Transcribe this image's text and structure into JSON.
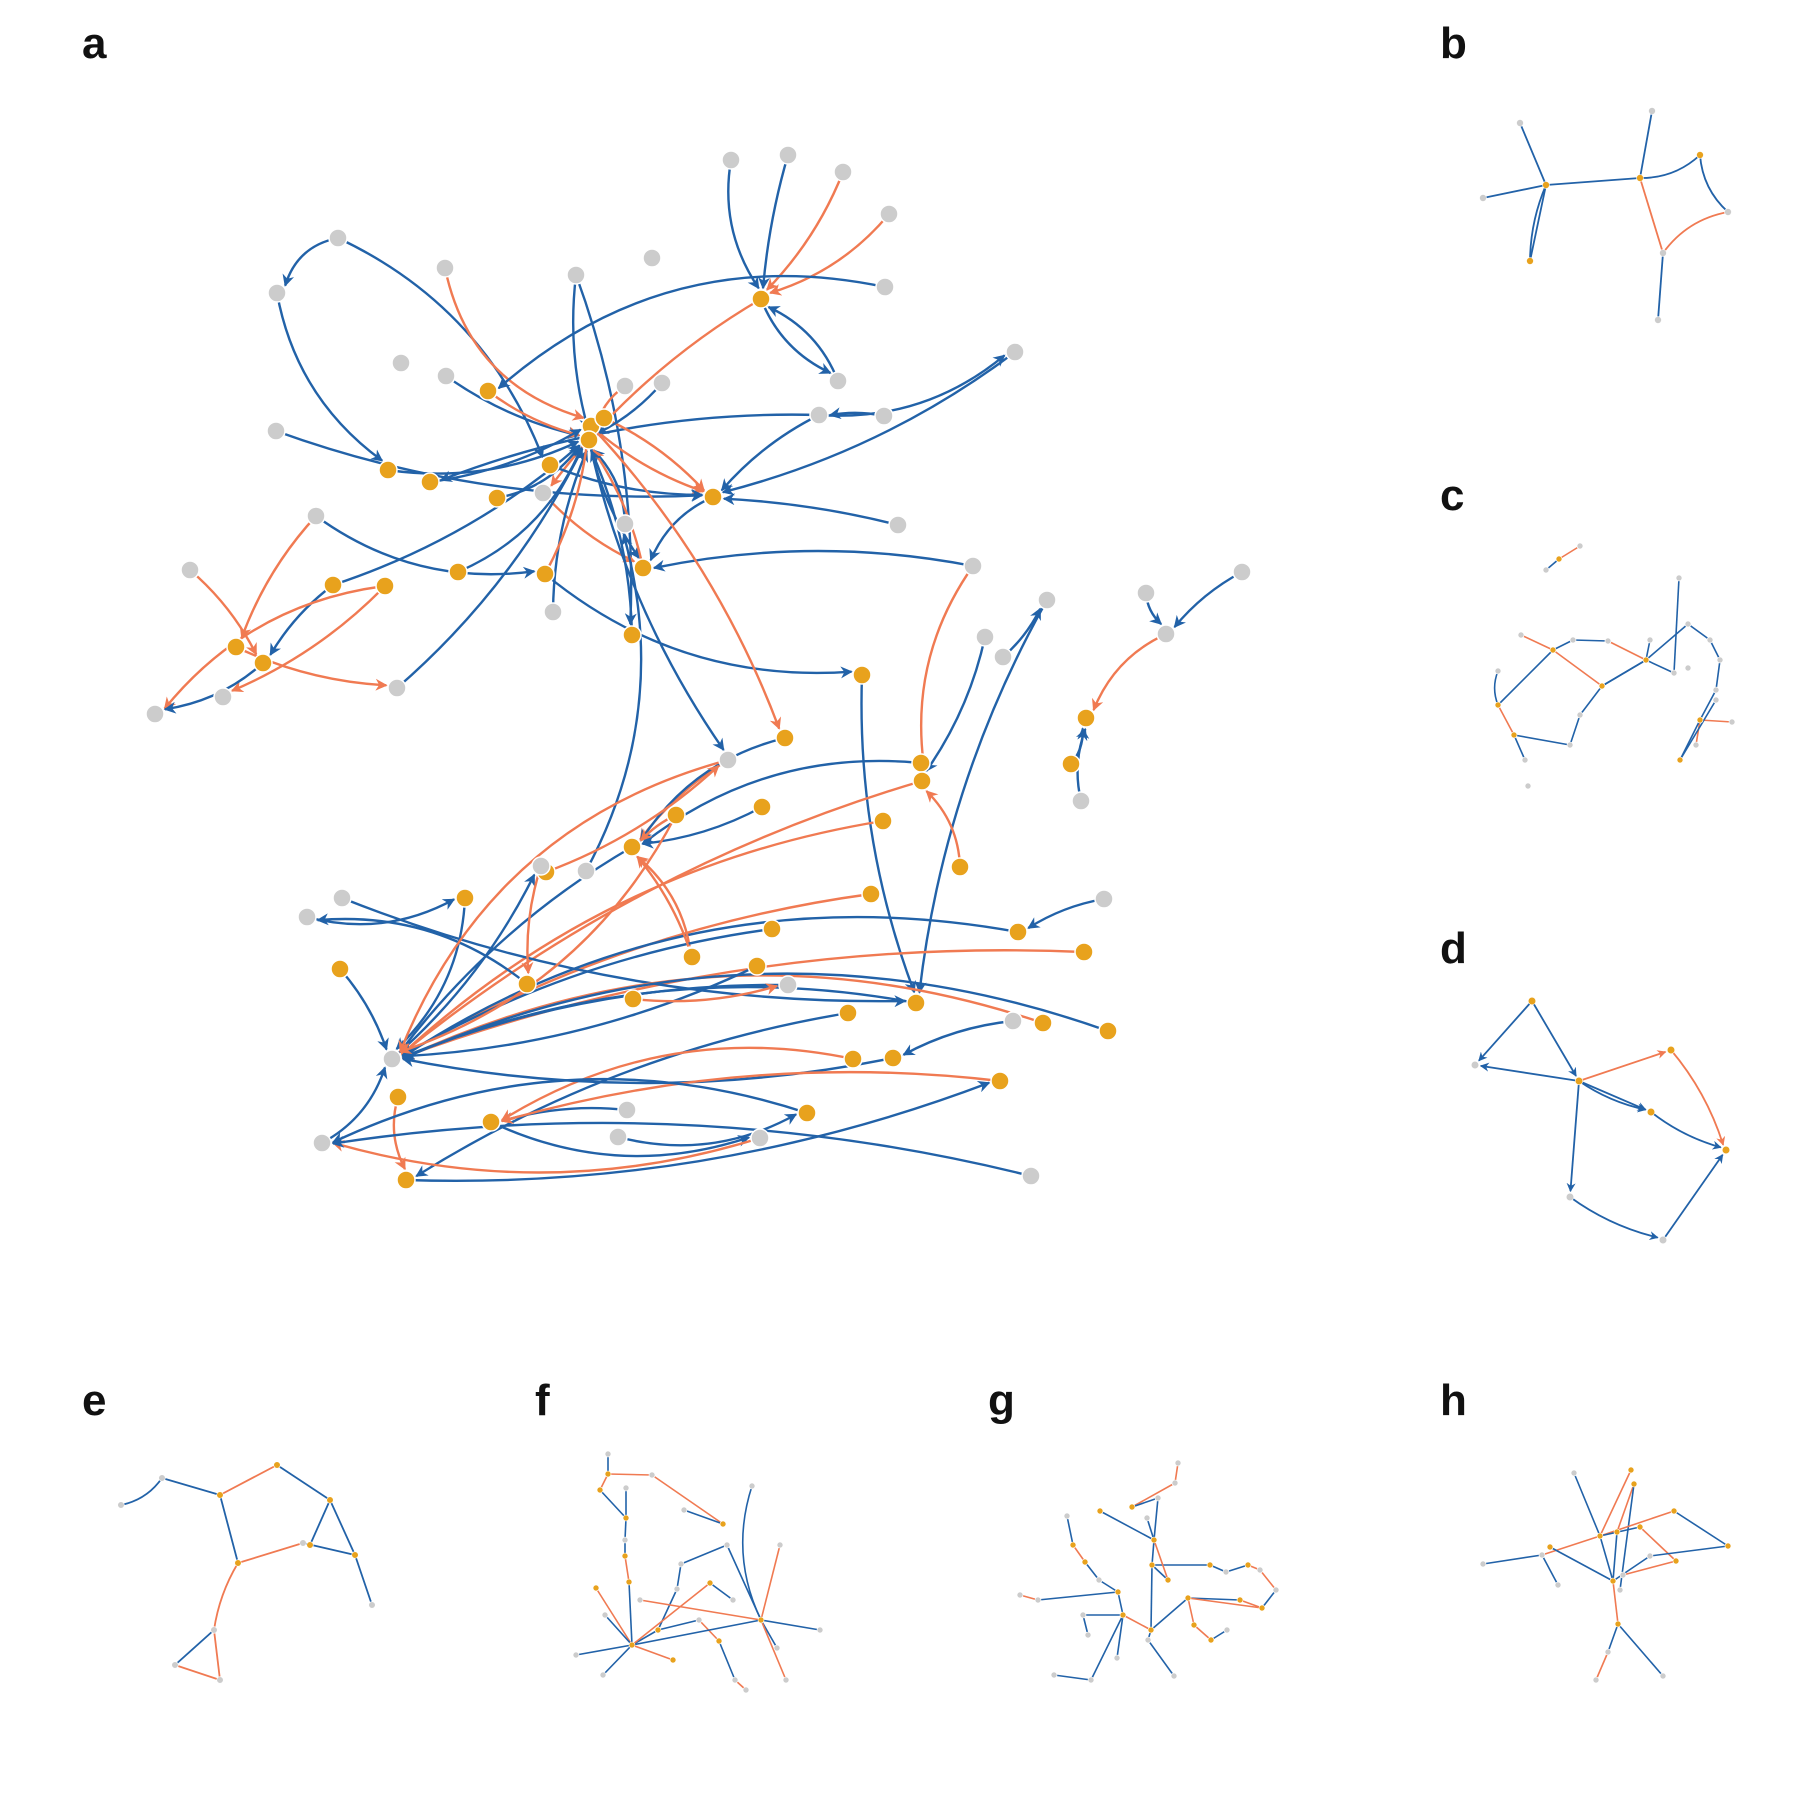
{
  "figure": {
    "panels": [
      {
        "label": "a"
      },
      {
        "label": "b"
      },
      {
        "label": "c"
      },
      {
        "label": "d"
      },
      {
        "label": "e"
      },
      {
        "label": "f"
      },
      {
        "label": "g"
      },
      {
        "label": "h"
      }
    ]
  },
  "colors": {
    "edge_primary": "#2262a8",
    "edge_secondary": "#f07a52",
    "node_active": "#e8a21d",
    "node_inactive": "#cccccc"
  }
}
